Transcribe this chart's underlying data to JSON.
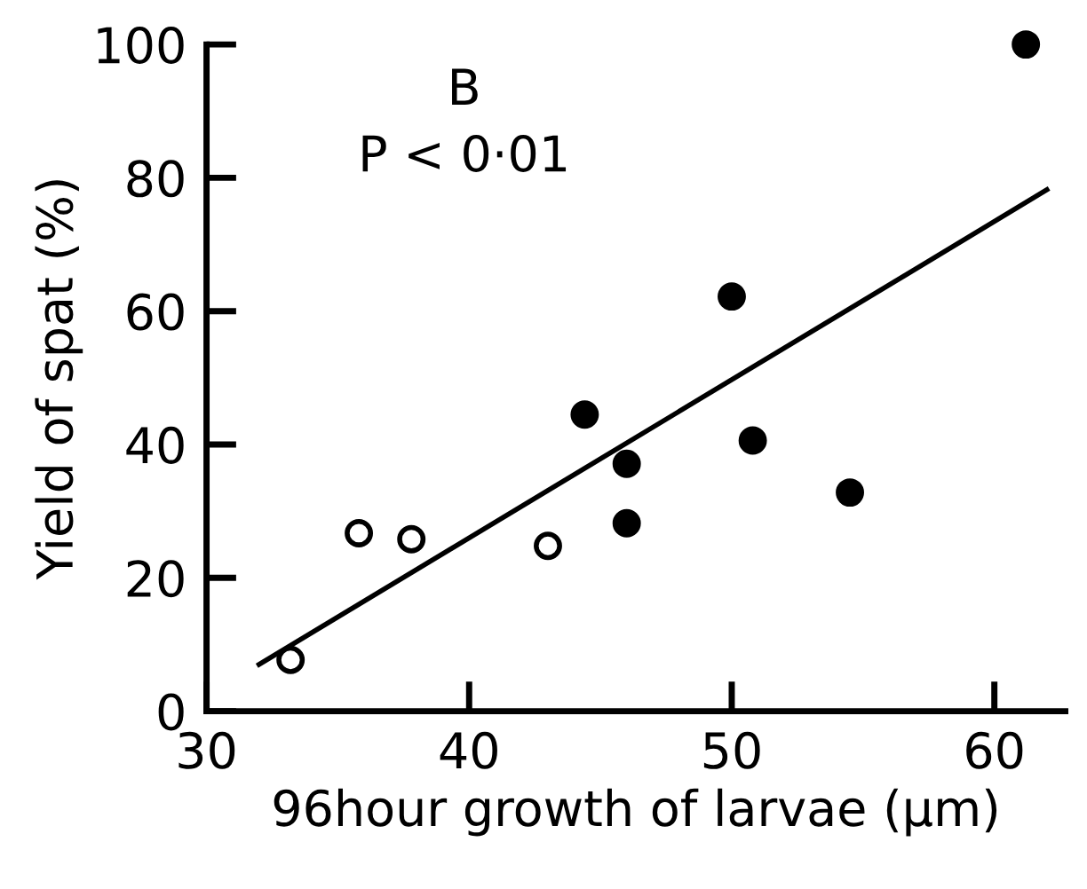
{
  "chart_data": {
    "type": "scatter",
    "xlabel": "96hour growth of larvae (µm)",
    "ylabel": "Yield of spat (%)",
    "annotations": [
      "B",
      "P < 0·01"
    ],
    "xlim": [
      30,
      62.7
    ],
    "ylim": [
      0,
      100
    ],
    "xticks": [
      30,
      40,
      50,
      60
    ],
    "yticks": [
      0,
      20,
      40,
      60,
      80,
      100
    ],
    "grid": false,
    "legend": false,
    "series": [
      {
        "color": "#ffffff",
        "marker": "circle",
        "x": [
          33.2,
          35.8,
          37.8,
          43.0
        ],
        "values": [
          7.7,
          26.7,
          25.8,
          24.8
        ]
      },
      {
        "color": "#000000",
        "marker": "circle",
        "x": [
          44.4,
          46.0,
          46.0,
          50.0,
          50.8,
          54.5,
          61.2
        ],
        "values": [
          44.5,
          37.1,
          28.2,
          62.2,
          40.6,
          32.8,
          100
        ]
      },
      {
        "type": "line",
        "color": "#000000",
        "x": [
          32.0,
          62.0
        ],
        "values": [
          7.0,
          78.2
        ]
      }
    ]
  }
}
